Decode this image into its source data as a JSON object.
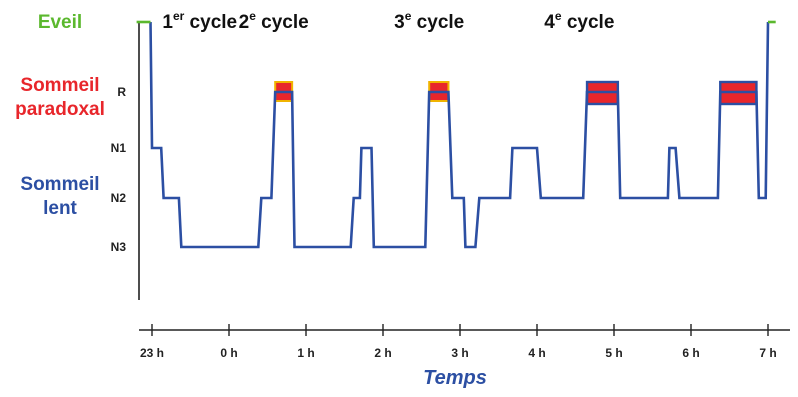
{
  "colors": {
    "eveil": "#5bb82e",
    "sommeil_paradoxal": "#e8262b",
    "sommeil_lent": "#2c4fa3",
    "trace": "#2c4fa3",
    "rem_fill": "#e8262b",
    "rem_edge": "#f0b400",
    "axis": "#222222"
  },
  "chart_data": {
    "type": "line",
    "subtype": "hypnogram-step",
    "xlabel": "Temps",
    "x_ticks": [
      "23 h",
      "0 h",
      "1 h",
      "2 h",
      "3 h",
      "4 h",
      "5 h",
      "6 h",
      "7 h"
    ],
    "xlim": [
      -0.35,
      8.1
    ],
    "stage_ticks": [
      "R",
      "N1",
      "N2",
      "N3"
    ],
    "categories": [
      {
        "label_lines": [
          "Eveil"
        ],
        "color": "eveil"
      },
      {
        "label_lines": [
          "Sommeil",
          "paradoxal"
        ],
        "color": "sommeil_paradoxal"
      },
      {
        "label_lines": [
          "Sommeil",
          "lent"
        ],
        "color": "sommeil_lent"
      }
    ],
    "cycles": [
      {
        "num": "1",
        "sup": "er",
        "text": " cycle",
        "center_h": 0.62
      },
      {
        "num": "2",
        "sup": "e",
        "text": " cycle",
        "center_h": 1.58
      },
      {
        "num": "3",
        "sup": "e",
        "text": " cycle",
        "center_h": 3.6
      },
      {
        "num": "4",
        "sup": "e",
        "text": " cycle",
        "center_h": 5.55
      }
    ],
    "series": [
      {
        "stage_points": [
          [
            -0.2,
            "W"
          ],
          [
            -0.02,
            "W"
          ],
          [
            0.0,
            "N1"
          ],
          [
            0.12,
            "N1"
          ],
          [
            0.15,
            "N2"
          ],
          [
            0.35,
            "N2"
          ],
          [
            0.38,
            "N3"
          ],
          [
            1.38,
            "N3"
          ],
          [
            1.42,
            "N2"
          ],
          [
            1.55,
            "N2"
          ],
          [
            1.6,
            "R"
          ],
          [
            1.82,
            "R"
          ],
          [
            1.85,
            "N3"
          ],
          [
            2.58,
            "N3"
          ],
          [
            2.62,
            "N2"
          ],
          [
            2.7,
            "N2"
          ],
          [
            2.72,
            "N1"
          ],
          [
            2.85,
            "N1"
          ],
          [
            2.88,
            "N3"
          ],
          [
            3.55,
            "N3"
          ],
          [
            3.6,
            "R"
          ],
          [
            3.85,
            "R"
          ],
          [
            3.9,
            "N2"
          ],
          [
            4.05,
            "N2"
          ],
          [
            4.07,
            "N3"
          ],
          [
            4.2,
            "N3"
          ],
          [
            4.25,
            "N2"
          ],
          [
            4.65,
            "N2"
          ],
          [
            4.68,
            "N1"
          ],
          [
            5.0,
            "N1"
          ],
          [
            5.05,
            "N2"
          ],
          [
            5.6,
            "N2"
          ],
          [
            5.65,
            "R"
          ],
          [
            6.05,
            "R"
          ],
          [
            6.08,
            "N2"
          ],
          [
            6.7,
            "N2"
          ],
          [
            6.72,
            "N1"
          ],
          [
            6.8,
            "N1"
          ],
          [
            6.85,
            "N2"
          ],
          [
            7.35,
            "N2"
          ],
          [
            7.38,
            "R"
          ],
          [
            7.85,
            "R"
          ],
          [
            7.88,
            "N2"
          ],
          [
            7.97,
            "N2"
          ],
          [
            8.0,
            "W"
          ],
          [
            8.1,
            "W"
          ]
        ]
      }
    ],
    "rem_blocks": [
      {
        "start_h": 1.6,
        "end_h": 1.82,
        "style": "thin"
      },
      {
        "start_h": 3.6,
        "end_h": 3.85,
        "style": "thin"
      },
      {
        "start_h": 5.65,
        "end_h": 6.05,
        "style": "thick"
      },
      {
        "start_h": 7.38,
        "end_h": 7.85,
        "style": "thick"
      }
    ]
  }
}
